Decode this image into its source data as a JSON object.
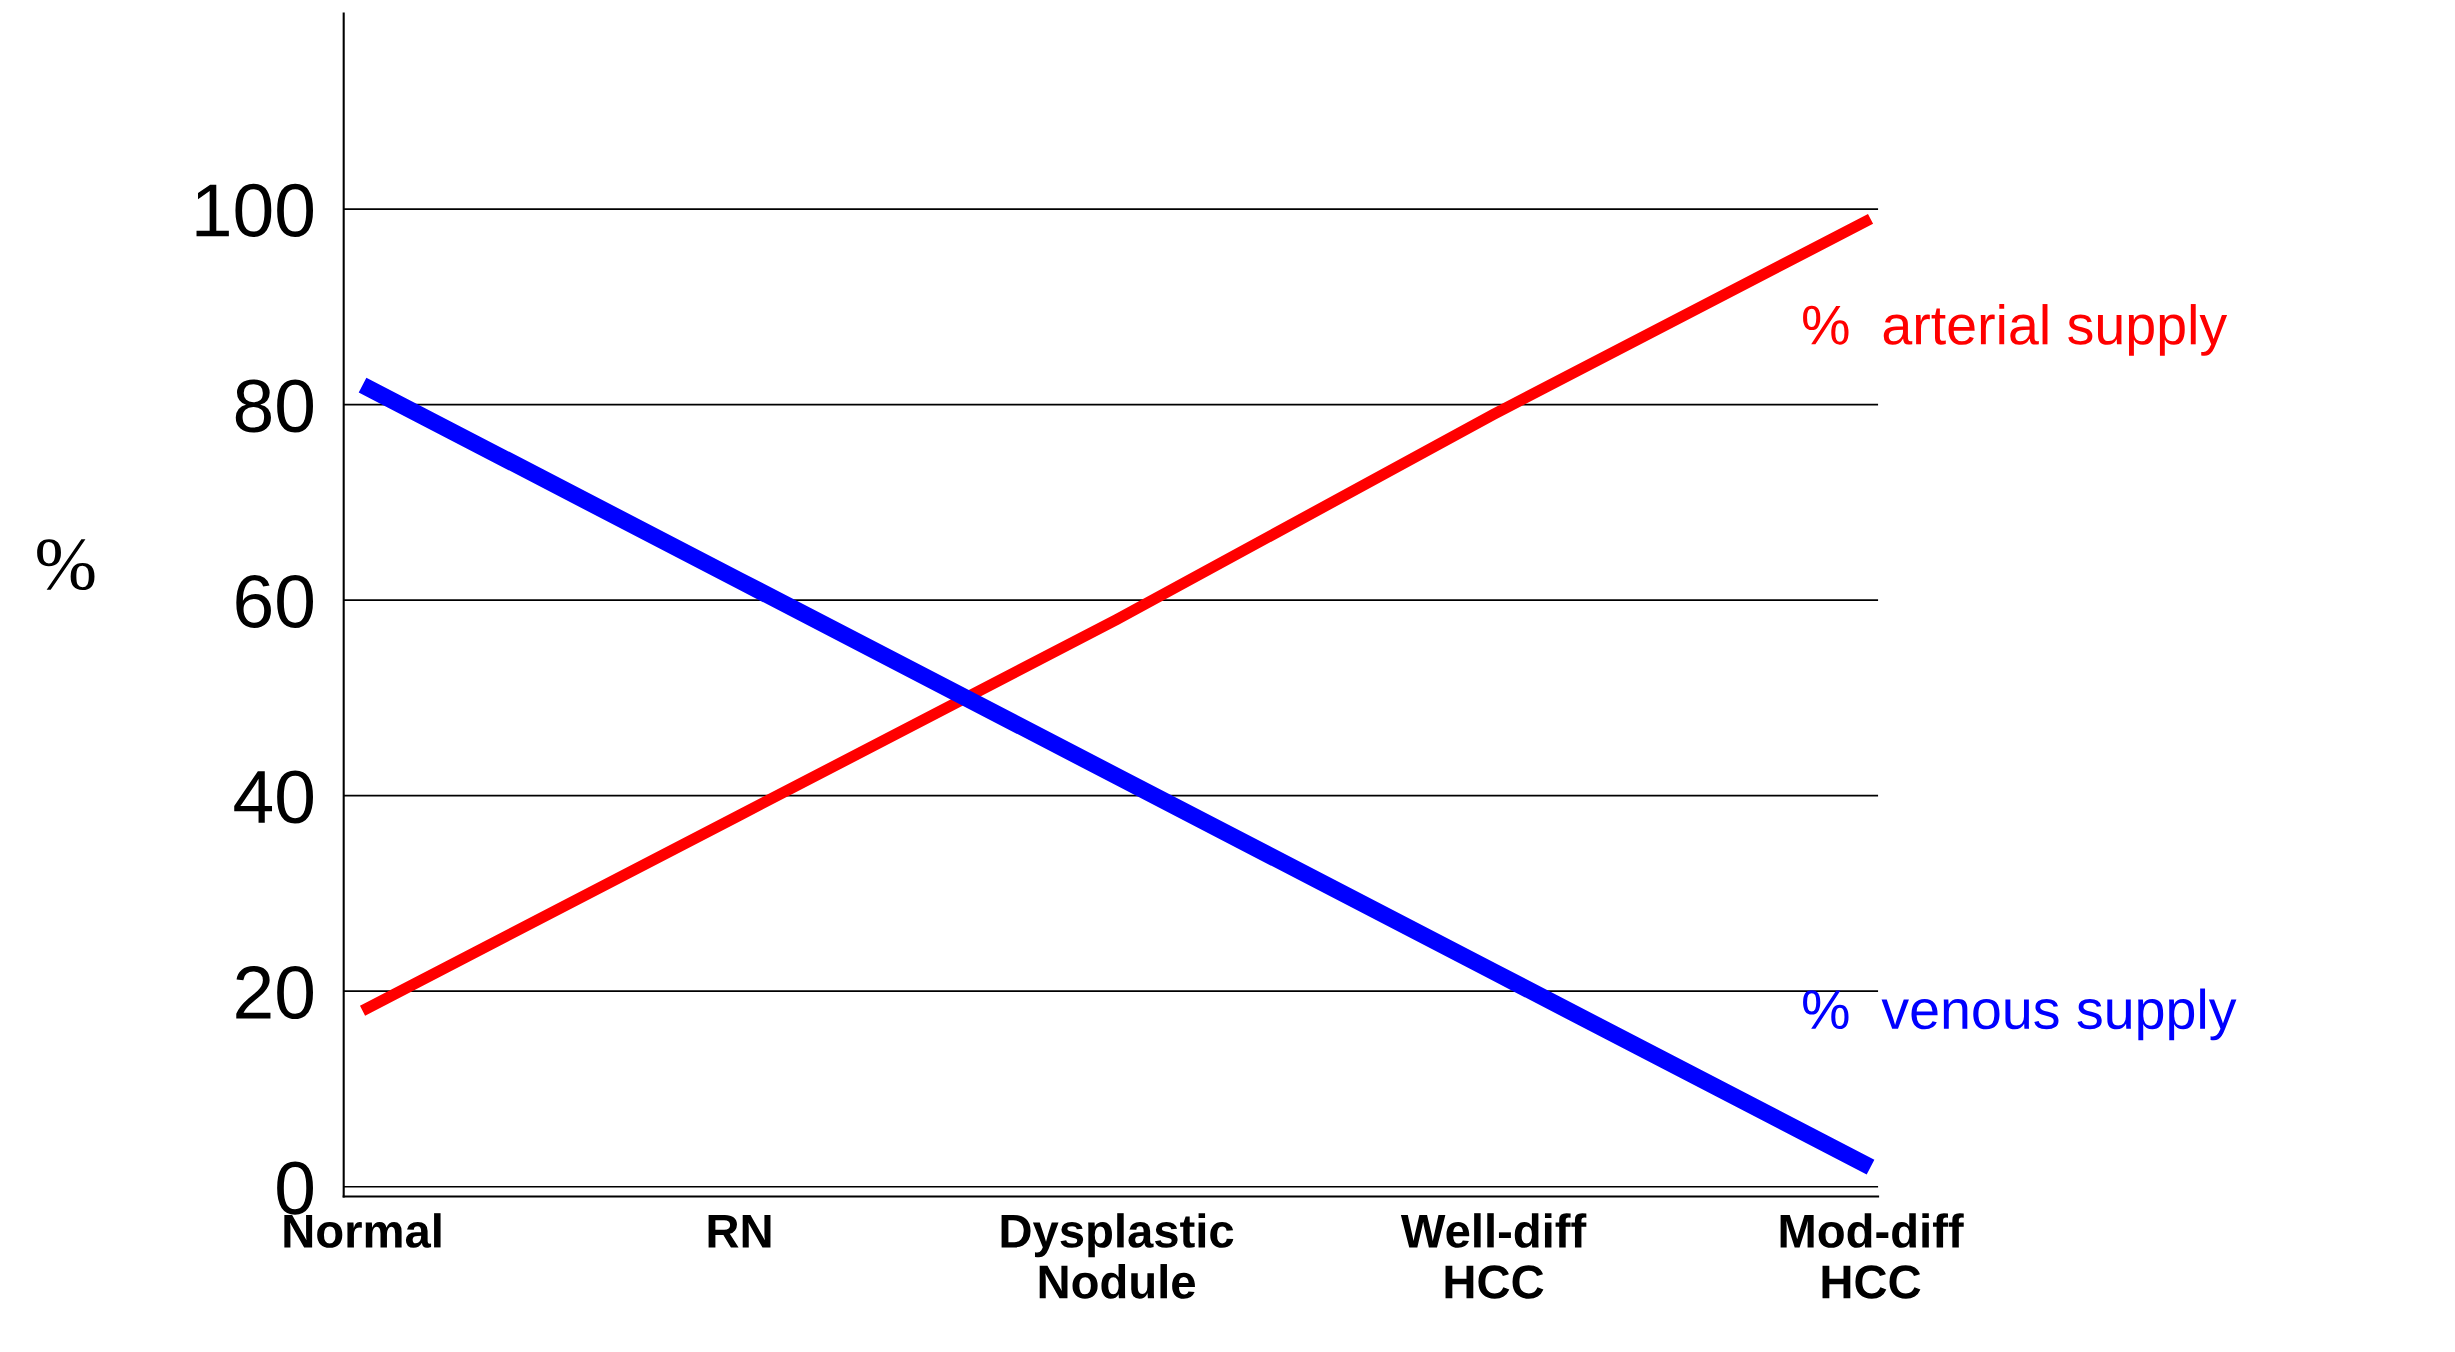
{
  "chart_data": {
    "type": "line",
    "ylabel": "%",
    "categories": [
      "Normal",
      "RN",
      "Dysplastic\nNodule",
      "Well-diff\nHCC",
      "Mod-diff\nHCC"
    ],
    "series": [
      {
        "name": "%  arterial supply",
        "color": "#ff0000",
        "values": [
          18,
          38,
          58,
          79,
          99
        ]
      },
      {
        "name": "%  venous supply",
        "color": "#0000ff",
        "values": [
          82,
          62,
          42,
          22,
          2
        ]
      }
    ],
    "ylim": [
      -1,
      120
    ],
    "yticks": [
      0,
      20,
      40,
      60,
      80,
      100
    ],
    "grid": "y",
    "legend": false,
    "marker": "none",
    "line_style": "solid"
  }
}
